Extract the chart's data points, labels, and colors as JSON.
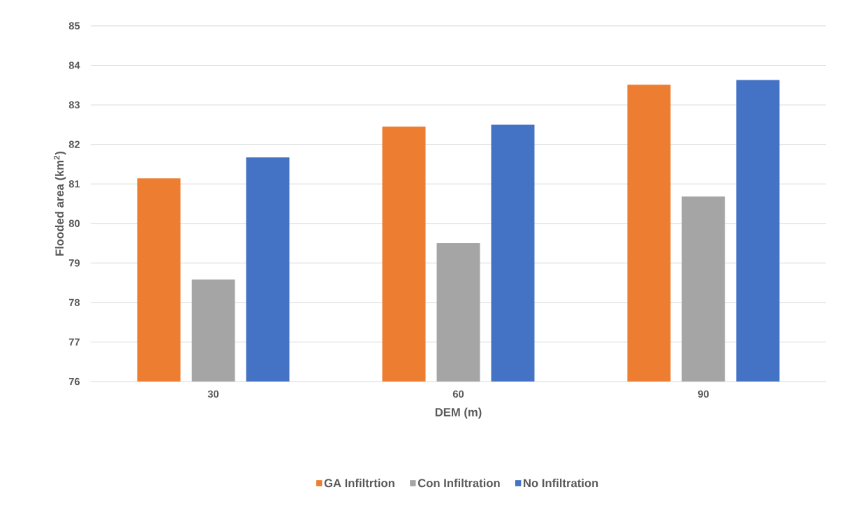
{
  "chart_data": {
    "type": "bar",
    "xlabel": "DEM (m)",
    "ylabel": "Flooded area (km$^{2}$)",
    "categories": [
      "30",
      "60",
      "90"
    ],
    "series": [
      {
        "name": "GA Infiltrtion",
        "color": "#ed7d31",
        "values": [
          81.14,
          82.45,
          83.51
        ]
      },
      {
        "name": "Con Infiltration",
        "color": "#a5a5a5",
        "values": [
          78.58,
          79.5,
          80.68
        ]
      },
      {
        "name": "No Infiltration",
        "color": "#4472c4",
        "values": [
          81.67,
          82.5,
          83.63
        ]
      }
    ],
    "ylim": [
      76,
      85
    ],
    "yticks": [
      76,
      77,
      78,
      79,
      80,
      81,
      82,
      83,
      84,
      85
    ],
    "grid": "y",
    "legend": "bottom"
  }
}
